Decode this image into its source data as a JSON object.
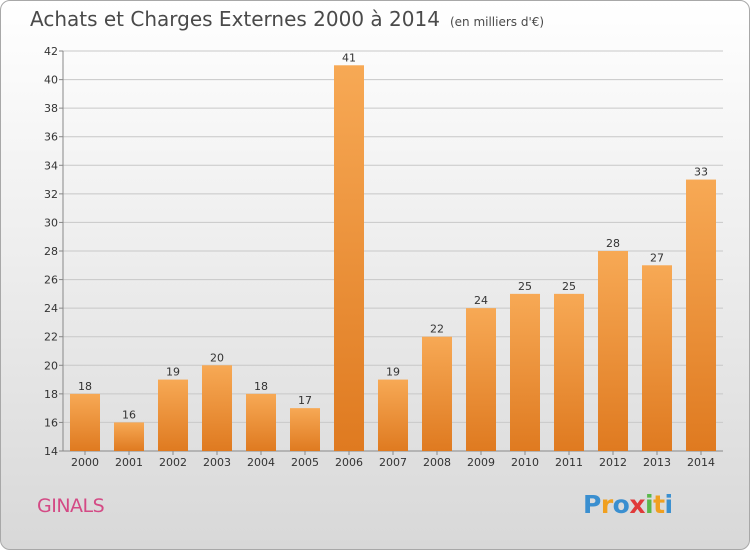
{
  "title": "Achats et Charges Externes 2000 à 2014",
  "subtitle": "(en milliers d'€)",
  "commune": "GINALS",
  "logo": {
    "letters": [
      "P",
      "r",
      "o",
      "x",
      "i",
      "t",
      "i"
    ],
    "colors": [
      "#3a8fd0",
      "#f0a020",
      "#3a8fd0",
      "#e03a3a",
      "#5ab84a",
      "#f0a020",
      "#3a8fd0"
    ]
  },
  "colors": {
    "bar_light": "#f7a955",
    "bar_dark": "#e07a20",
    "title": "#4a4a4a",
    "commune": "#d44a85"
  },
  "chart_data": {
    "type": "bar",
    "categories": [
      "2000",
      "2001",
      "2002",
      "2003",
      "2004",
      "2005",
      "2006",
      "2007",
      "2008",
      "2009",
      "2010",
      "2011",
      "2012",
      "2013",
      "2014"
    ],
    "values": [
      18,
      16,
      19,
      20,
      18,
      17,
      41,
      19,
      22,
      24,
      25,
      25,
      28,
      27,
      33
    ],
    "ylim": [
      14,
      42
    ],
    "yticks": [
      14,
      16,
      18,
      20,
      22,
      24,
      26,
      28,
      30,
      32,
      34,
      36,
      38,
      40,
      42
    ],
    "grid": true
  }
}
